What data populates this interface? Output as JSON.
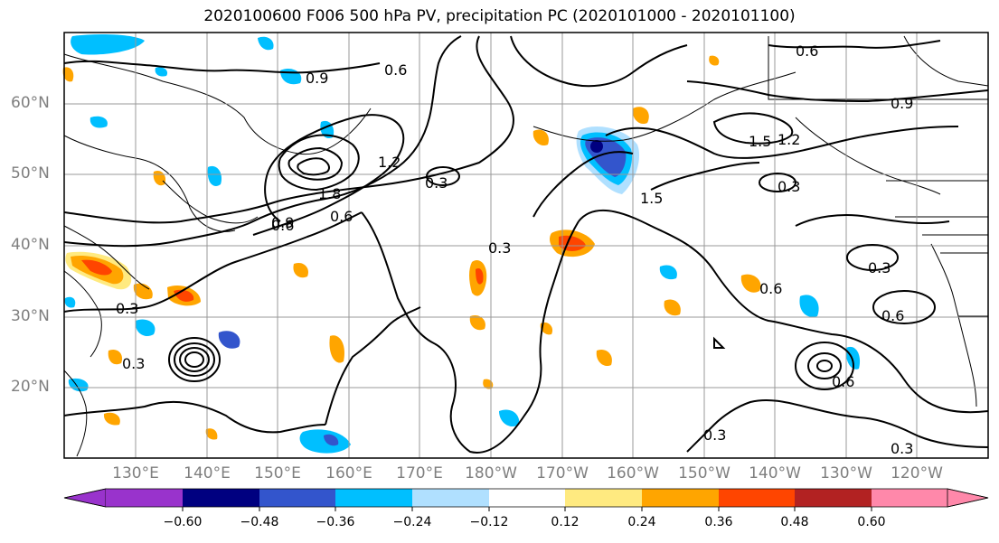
{
  "title": "2020100600 F006 500 hPa PV, precipitation PC (2020101000 - 2020101100)",
  "lat_labels": [
    "60°N",
    "50°N",
    "40°N",
    "30°N",
    "20°N"
  ],
  "lon_labels": [
    "130°E",
    "140°E",
    "150°E",
    "160°E",
    "170°E",
    "180°W",
    "170°W",
    "160°W",
    "150°W",
    "140°W",
    "130°W",
    "120°W"
  ],
  "contour_labels": [
    "0.3",
    "0.6",
    "0.9",
    "1.2",
    "1.5",
    "1.8"
  ],
  "colorbar": {
    "tick_labels": [
      "−0.60",
      "−0.48",
      "−0.36",
      "−0.24",
      "−0.12",
      "0.12",
      "0.24",
      "0.36",
      "0.48",
      "0.60"
    ],
    "colors": [
      "#9933cc",
      "#000080",
      "#3355cc",
      "#00bfff",
      "#b0e0ff",
      "#ffffff",
      "#ffea80",
      "#ffa500",
      "#ff4500",
      "#b22222",
      "#ff88aa"
    ]
  },
  "colors": {
    "grid": "#999999",
    "contour": "#000000",
    "axis_label": "#7f7f7f"
  }
}
